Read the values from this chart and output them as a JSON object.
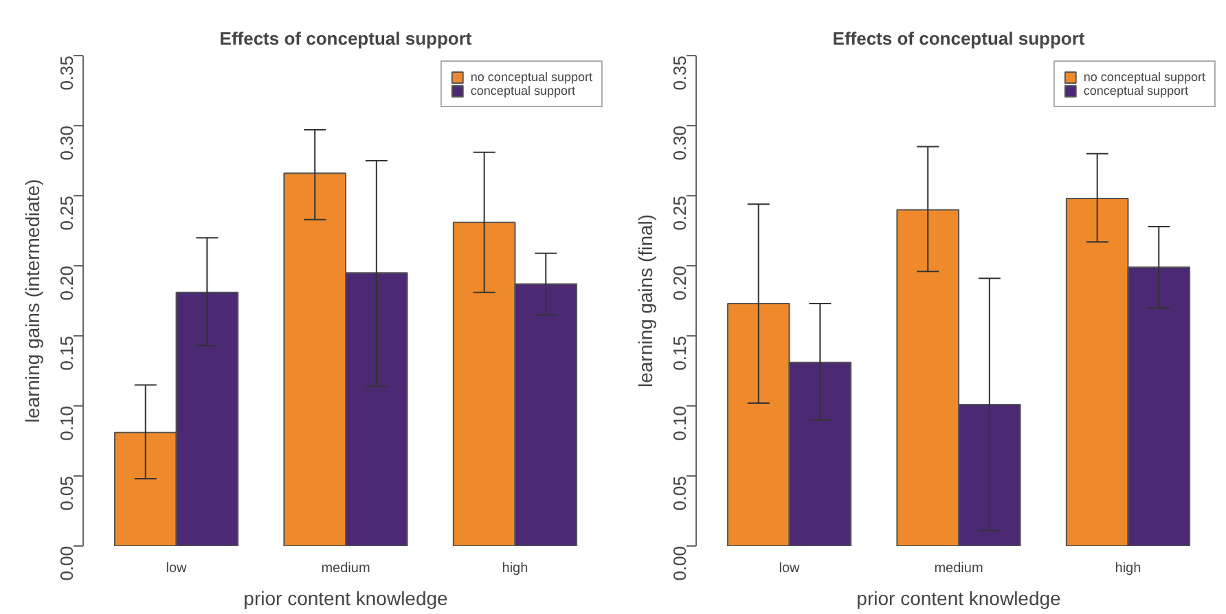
{
  "chart_data": [
    {
      "type": "bar",
      "title": "Effects of conceptual support",
      "xlabel": "prior content knowledge",
      "ylabel": "learning gains (intermediate)",
      "categories": [
        "low",
        "medium",
        "high"
      ],
      "ylim": [
        0,
        0.35
      ],
      "yticks": [
        {
          "value": 0,
          "label": "0.00"
        },
        {
          "value": 0.05,
          "label": "0.05"
        },
        {
          "value": 0.1,
          "label": "0.10"
        },
        {
          "value": 0.15,
          "label": "0.15"
        },
        {
          "value": 0.2,
          "label": "0.20"
        },
        {
          "value": 0.25,
          "label": "0.25"
        },
        {
          "value": 0.3,
          "label": "0.30"
        },
        {
          "value": 0.35,
          "label": "0.35"
        }
      ],
      "legend": "top right",
      "grid": false,
      "series": [
        {
          "name": "no conceptual support",
          "color": "#ee8a2c",
          "values": [
            0.081,
            0.266,
            0.231
          ],
          "errors": [
            [
              0.048,
              0.115
            ],
            [
              0.233,
              0.297
            ],
            [
              0.181,
              0.281
            ]
          ]
        },
        {
          "name": "conceptual support",
          "color": "#4b2a73",
          "values": [
            0.181,
            0.195,
            0.187
          ],
          "errors": [
            [
              0.143,
              0.22
            ],
            [
              0.114,
              0.275
            ],
            [
              0.165,
              0.209
            ]
          ]
        }
      ]
    },
    {
      "type": "bar",
      "title": "Effects of conceptual support",
      "xlabel": "prior content knowledge",
      "ylabel": "learning gains (final)",
      "categories": [
        "low",
        "medium",
        "high"
      ],
      "ylim": [
        0,
        0.35
      ],
      "yticks": [
        {
          "value": 0,
          "label": "0.00"
        },
        {
          "value": 0.05,
          "label": "0.05"
        },
        {
          "value": 0.1,
          "label": "0.10"
        },
        {
          "value": 0.15,
          "label": "0.15"
        },
        {
          "value": 0.2,
          "label": "0.20"
        },
        {
          "value": 0.25,
          "label": "0.25"
        },
        {
          "value": 0.3,
          "label": "0.30"
        },
        {
          "value": 0.35,
          "label": "0.35"
        }
      ],
      "legend": "top right",
      "grid": false,
      "series": [
        {
          "name": "no conceptual support",
          "color": "#ee8a2c",
          "values": [
            0.173,
            0.24,
            0.248
          ],
          "errors": [
            [
              0.102,
              0.244
            ],
            [
              0.196,
              0.285
            ],
            [
              0.217,
              0.28
            ]
          ]
        },
        {
          "name": "conceptual support",
          "color": "#4b2a73",
          "values": [
            0.131,
            0.101,
            0.199
          ],
          "errors": [
            [
              0.09,
              0.173
            ],
            [
              0.011,
              0.191
            ],
            [
              0.17,
              0.228
            ]
          ]
        }
      ]
    }
  ]
}
